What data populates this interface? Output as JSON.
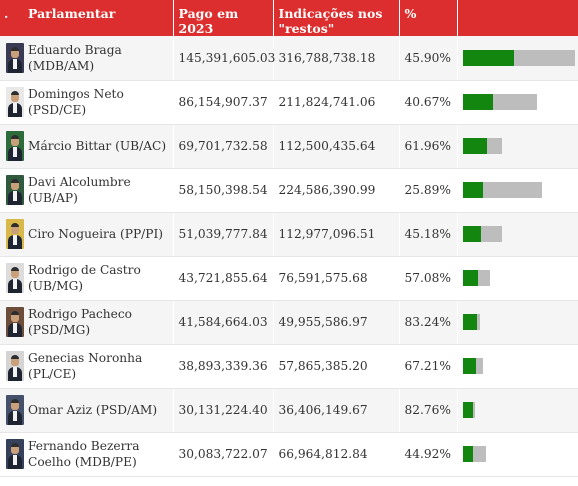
{
  "header": {
    "dot": ".",
    "parlamentar": "Parlamentar",
    "pago": "Pago em 2023",
    "indicacoes_line1": "Indicações nos",
    "indicacoes_line2": "\"restos\"",
    "pct": "%"
  },
  "max_indicacoes": 316788738.18,
  "colors": {
    "header_bg": "#dc2e2e",
    "bar_paid": "#12860f",
    "bar_total": "#bdbdbd",
    "row_alt": "#f5f5f5"
  },
  "rows": [
    {
      "name": "Eduardo Braga (MDB/AM)",
      "pago": "145,391,605.03",
      "indicacoes": "316,788,738.18",
      "pct": "45.90%",
      "pago_value": 145391605.03,
      "indicacoes_value": 316788738.18,
      "photo_bg": "#3a3a55"
    },
    {
      "name": "Domingos Neto (PSD/CE)",
      "pago": "86,154,907.37",
      "indicacoes": "211,824,741.06",
      "pct": "40.67%",
      "pago_value": 86154907.37,
      "indicacoes_value": 211824741.06,
      "photo_bg": "#e8e8e8"
    },
    {
      "name": "Márcio Bittar (UB/AC)",
      "pago": "69,701,732.58",
      "indicacoes": "112,500,435.64",
      "pct": "61.96%",
      "pago_value": 69701732.58,
      "indicacoes_value": 112500435.64,
      "photo_bg": "#2e6b3a"
    },
    {
      "name": "Davi Alcolumbre (UB/AP)",
      "pago": "58,150,398.54",
      "indicacoes": "224,586,390.99",
      "pct": "25.89%",
      "pago_value": 58150398.54,
      "indicacoes_value": 224586390.99,
      "photo_bg": "#2f5a3e"
    },
    {
      "name": "Ciro Nogueira (PP/PI)",
      "pago": "51,039,777.84",
      "indicacoes": "112,977,096.51",
      "pct": "45.18%",
      "pago_value": 51039777.84,
      "indicacoes_value": 112977096.51,
      "photo_bg": "#d9b84a"
    },
    {
      "name": "Rodrigo de Castro (UB/MG)",
      "pago": "43,721,855.64",
      "indicacoes": "76,591,575.68",
      "pct": "57.08%",
      "pago_value": 43721855.64,
      "indicacoes_value": 76591575.68,
      "photo_bg": "#dcdcdc"
    },
    {
      "name": "Rodrigo Pacheco (PSD/MG)",
      "pago": "41,584,664.03",
      "indicacoes": "49,955,586.97",
      "pct": "83.24%",
      "pago_value": 41584664.03,
      "indicacoes_value": 49955586.97,
      "photo_bg": "#6b4d3a"
    },
    {
      "name": "Genecias Noronha (PL/CE)",
      "pago": "38,893,339.36",
      "indicacoes": "57,865,385.20",
      "pct": "67.21%",
      "pago_value": 38893339.36,
      "indicacoes_value": 57865385.2,
      "photo_bg": "#d4d4d4"
    },
    {
      "name": "Omar Aziz (PSD/AM)",
      "pago": "30,131,224.40",
      "indicacoes": "36,406,149.67",
      "pct": "82.76%",
      "pago_value": 30131224.4,
      "indicacoes_value": 36406149.67,
      "photo_bg": "#45506b"
    },
    {
      "name": "Fernando Bezerra Coelho (MDB/PE)",
      "pago": "30,083,722.07",
      "indicacoes": "66,964,812.84",
      "pct": "44.92%",
      "pago_value": 30083722.07,
      "indicacoes_value": 66964812.84,
      "photo_bg": "#35405a"
    }
  ]
}
